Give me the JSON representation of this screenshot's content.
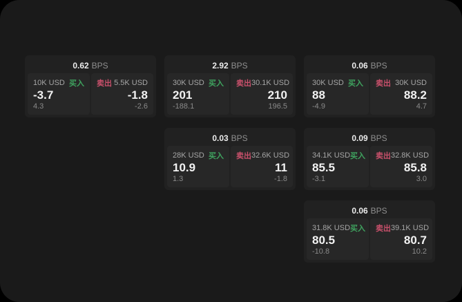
{
  "labels": {
    "bps_unit": "BPS",
    "buy": "买入",
    "sell": "卖出"
  },
  "colors": {
    "surface": "#1a1a1a",
    "backdrop": "#000000",
    "card": "#212121",
    "cell": "#272727",
    "buy": "#3fa35f",
    "sell": "#c8506b"
  },
  "columns": [
    {
      "cards": [
        {
          "bps": "0.62",
          "buy": {
            "amount": "10K USD",
            "value": "-3.7",
            "delta": "4.3"
          },
          "sell": {
            "amount": "5.5K USD",
            "value": "-1.8",
            "delta": "-2.6"
          }
        }
      ]
    },
    {
      "cards": [
        {
          "bps": "2.92",
          "buy": {
            "amount": "30K USD",
            "value": "201",
            "delta": "-188.1"
          },
          "sell": {
            "amount": "30.1K USD",
            "value": "210",
            "delta": "196.5"
          }
        },
        {
          "bps": "0.03",
          "buy": {
            "amount": "28K USD",
            "value": "10.9",
            "delta": "1.3"
          },
          "sell": {
            "amount": "32.6K USD",
            "value": "11",
            "delta": "-1.8"
          }
        }
      ]
    },
    {
      "cards": [
        {
          "bps": "0.06",
          "buy": {
            "amount": "30K USD",
            "value": "88",
            "delta": "-4.9"
          },
          "sell": {
            "amount": "30K USD",
            "value": "88.2",
            "delta": "4.7"
          }
        },
        {
          "bps": "0.09",
          "buy": {
            "amount": "34.1K USD",
            "value": "85.5",
            "delta": "-3.1"
          },
          "sell": {
            "amount": "32.8K USD",
            "value": "85.8",
            "delta": "3.0"
          }
        },
        {
          "bps": "0.06",
          "buy": {
            "amount": "31.8K USD",
            "value": "80.5",
            "delta": "-10.8"
          },
          "sell": {
            "amount": "39.1K USD",
            "value": "80.7",
            "delta": "10.2"
          }
        }
      ]
    }
  ]
}
